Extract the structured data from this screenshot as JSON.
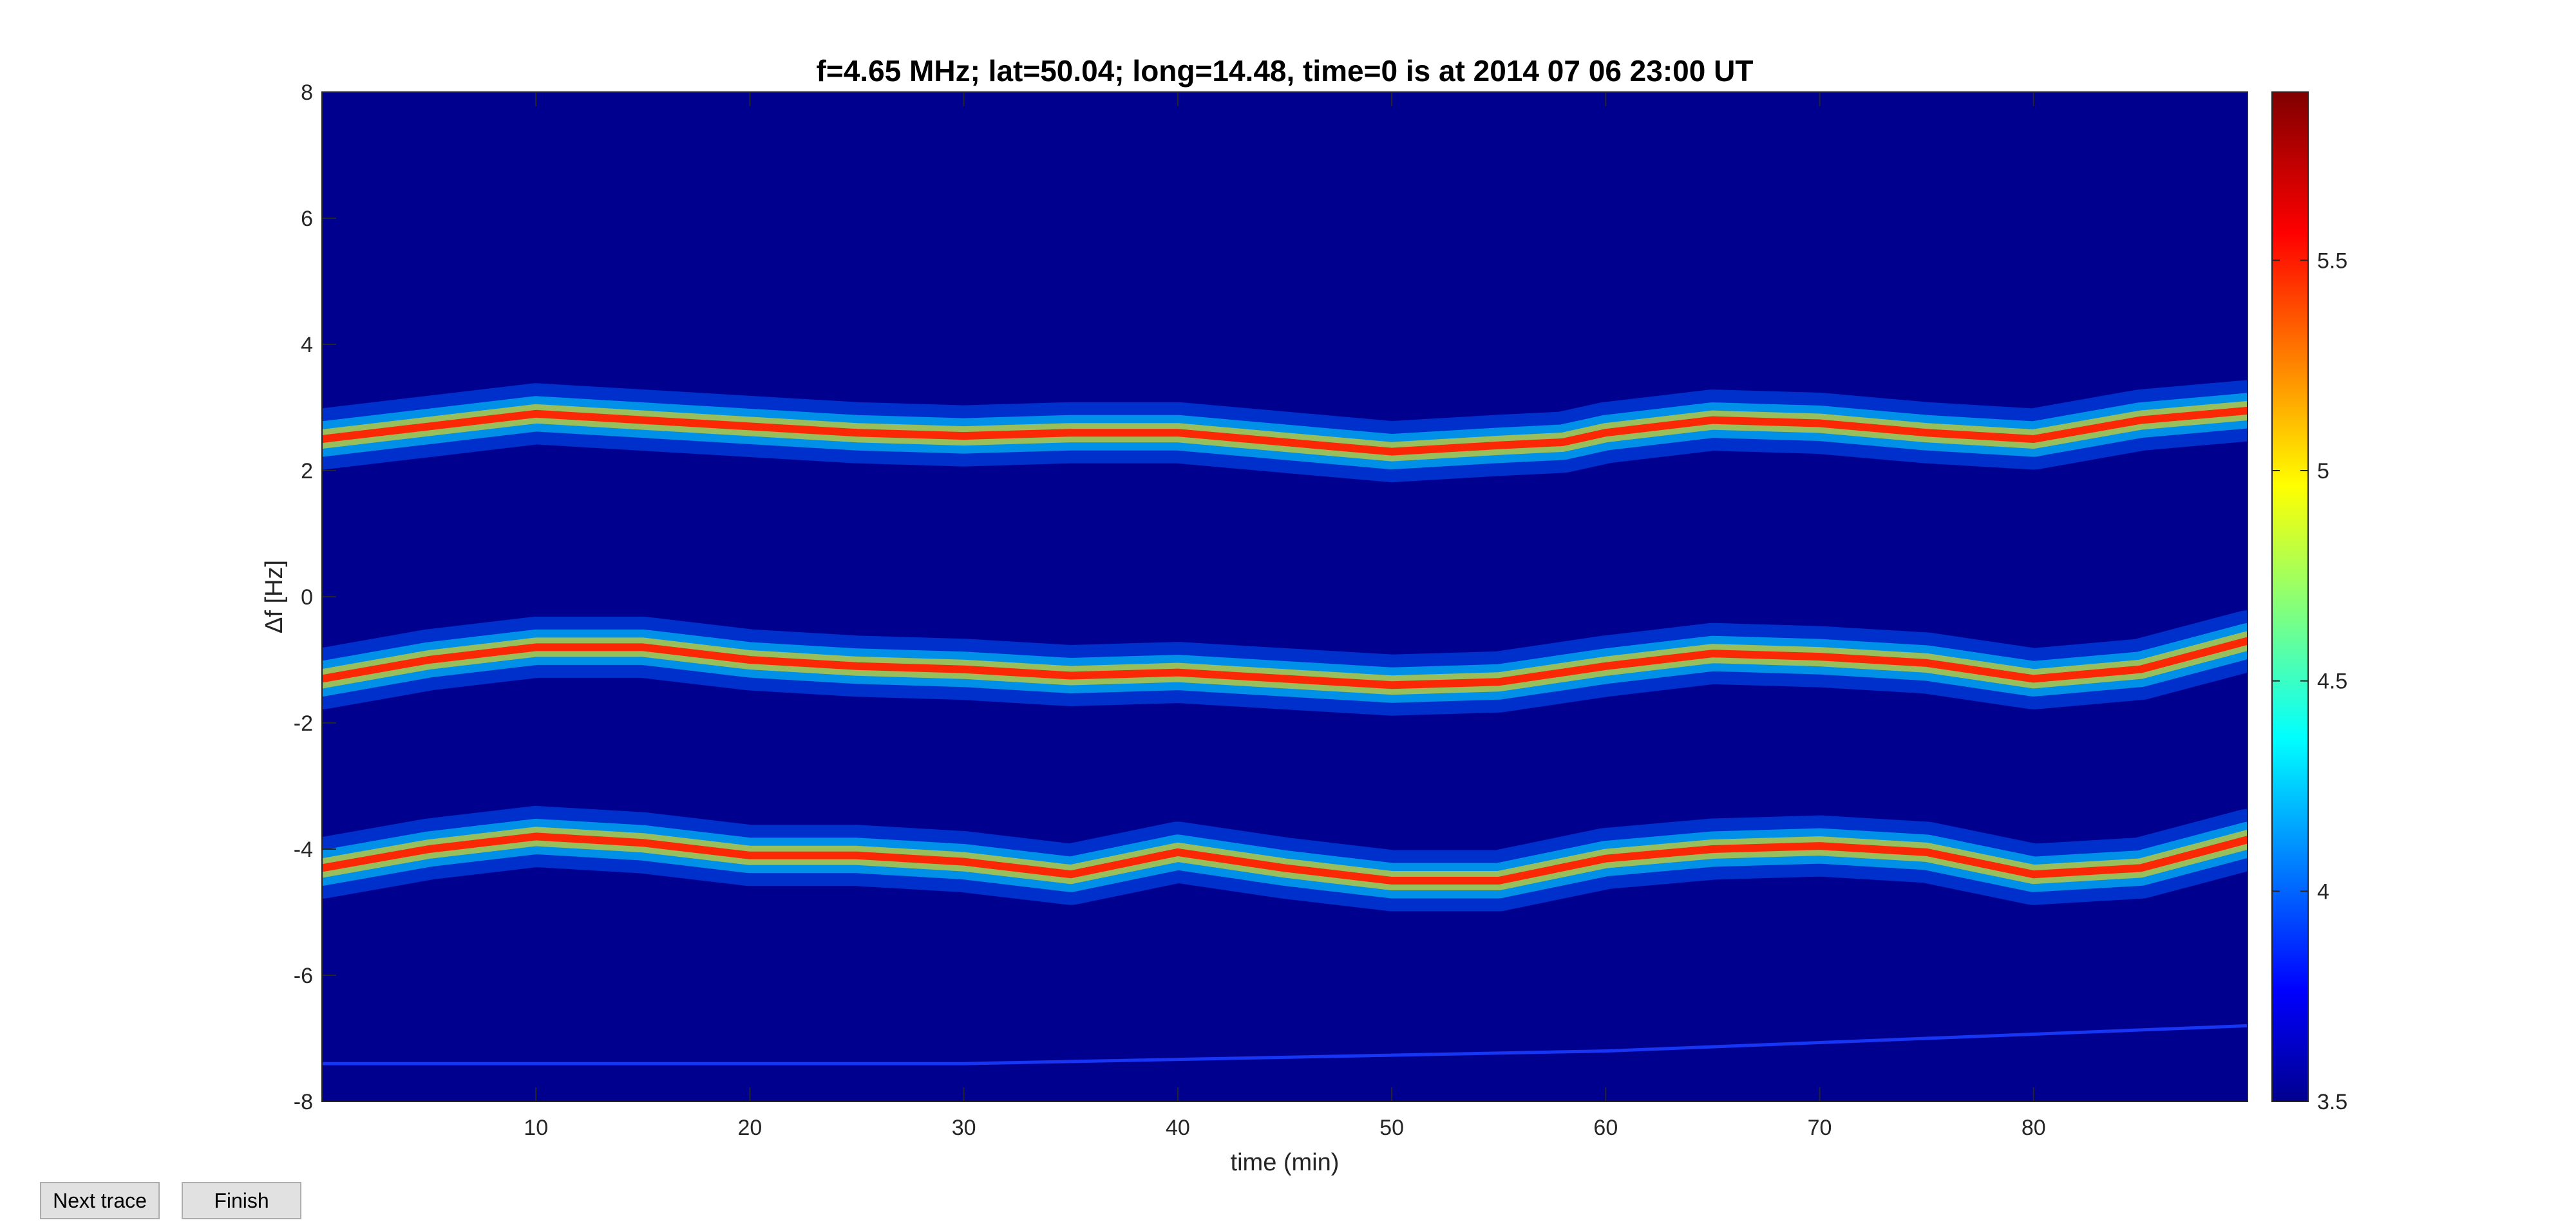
{
  "buttons": {
    "next_trace": "Next trace",
    "finish": "Finish"
  },
  "chart_data": {
    "type": "heatmap",
    "title": "f=4.65 MHz;  lat=50.04; long=14.48, time=0 is at 2014 07 06 23:00 UT",
    "xlabel": "time (min)",
    "ylabel": "Δf [Hz]",
    "xlim": [
      0,
      90
    ],
    "ylim": [
      -8,
      8
    ],
    "xticks": [
      10,
      20,
      30,
      40,
      50,
      60,
      70,
      80
    ],
    "yticks": [
      -8,
      -6,
      -4,
      -2,
      0,
      2,
      4,
      6,
      8
    ],
    "colorbar": {
      "min": 3.5,
      "max": 5.9,
      "ticks": [
        3.5,
        4,
        4.5,
        5,
        5.5
      ],
      "colormap": "jet"
    },
    "background_color": "#00008f",
    "series": [
      {
        "x": [
          0,
          5,
          10,
          15,
          20,
          25,
          30,
          35,
          40,
          45,
          50,
          55,
          58,
          60,
          65,
          70,
          75,
          80,
          85,
          90
        ],
        "y": [
          2.5,
          2.7,
          2.9,
          2.8,
          2.7,
          2.6,
          2.55,
          2.6,
          2.6,
          2.45,
          2.3,
          2.4,
          2.45,
          2.6,
          2.8,
          2.75,
          2.6,
          2.5,
          2.8,
          2.95
        ]
      },
      {
        "x": [
          0,
          5,
          10,
          15,
          20,
          25,
          30,
          35,
          40,
          45,
          50,
          55,
          60,
          65,
          70,
          75,
          80,
          85,
          90
        ],
        "y": [
          -1.3,
          -1.0,
          -0.8,
          -0.8,
          -1.0,
          -1.1,
          -1.15,
          -1.25,
          -1.2,
          -1.3,
          -1.4,
          -1.35,
          -1.1,
          -0.9,
          -0.95,
          -1.05,
          -1.3,
          -1.15,
          -0.7
        ]
      },
      {
        "x": [
          0,
          5,
          10,
          15,
          20,
          25,
          30,
          35,
          40,
          45,
          50,
          55,
          60,
          65,
          70,
          75,
          80,
          85,
          90
        ],
        "y": [
          -4.3,
          -4.0,
          -3.8,
          -3.9,
          -4.1,
          -4.1,
          -4.2,
          -4.4,
          -4.05,
          -4.3,
          -4.5,
          -4.5,
          -4.15,
          -4.0,
          -3.95,
          -4.05,
          -4.4,
          -4.3,
          -3.85
        ]
      },
      {
        "x": [
          0,
          30,
          60,
          90
        ],
        "y": [
          -7.4,
          -7.4,
          -7.2,
          -6.8
        ]
      }
    ]
  }
}
